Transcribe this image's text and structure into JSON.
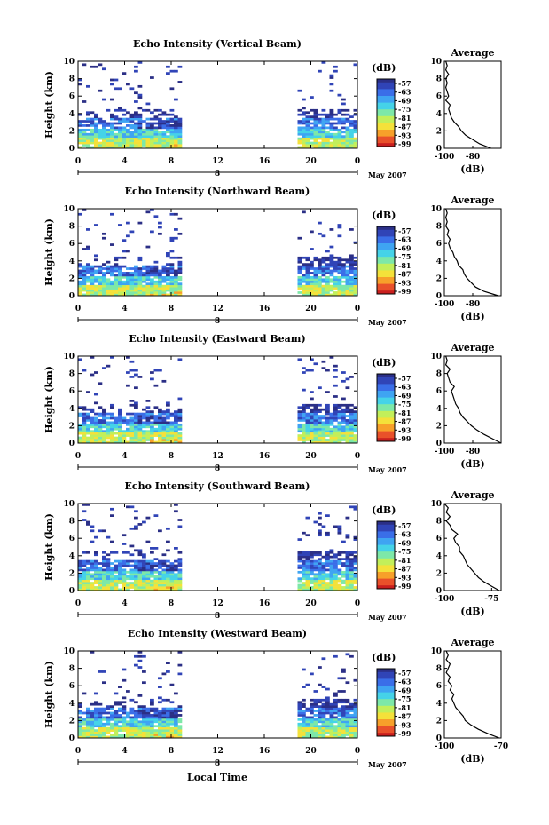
{
  "figure": {
    "x_axis_label": "Local Time",
    "date_label": "May 2007",
    "day_marker": "8"
  },
  "colors": {
    "colormap": [
      "#2b2f86",
      "#3044b7",
      "#3a6ee8",
      "#3fa4f2",
      "#45d3e8",
      "#7de8a8",
      "#c2ef5a",
      "#f4e13a",
      "#f7a02a",
      "#e9512a",
      "#c91f1f"
    ]
  },
  "chart_data": [
    {
      "type": "heatmap",
      "title": "Echo Intensity (Vertical Beam)",
      "ylabel": "Height (km)",
      "ylim": [
        0,
        10
      ],
      "yticks": [
        "0",
        "2",
        "4",
        "6",
        "8",
        "10"
      ],
      "xlim": [
        0,
        24
      ],
      "xticks": [
        "0",
        "4",
        "8",
        "12",
        "16",
        "20",
        "0"
      ],
      "data_coverage_hours": [
        [
          0,
          8.8
        ],
        [
          18.6,
          24
        ]
      ],
      "colorbar": {
        "unit": "(dB)",
        "ticks": [
          "-57",
          "-63",
          "-69",
          "-75",
          "-81",
          "-87",
          "-93",
          "-99"
        ]
      },
      "average_profile": {
        "title": "Average",
        "xlabel": "(dB)",
        "xticks": [
          "-100",
          "-80"
        ],
        "xlim": [
          -100,
          -60
        ],
        "yticks": [
          "0",
          "2",
          "4",
          "6",
          "8",
          "10"
        ],
        "ylim": [
          0,
          10
        ],
        "height_km": [
          0,
          0.5,
          1,
          1.5,
          2,
          2.5,
          3,
          3.5,
          4,
          4.5,
          5,
          5.5,
          6,
          6.5,
          7,
          7.5,
          8,
          8.5,
          9,
          9.5,
          10
        ],
        "value_db": [
          -67,
          -75,
          -80,
          -85,
          -88,
          -90,
          -93,
          -95,
          -96,
          -97,
          -96,
          -99,
          -97,
          -98,
          -99,
          -98,
          -99,
          -97,
          -99,
          -98,
          -99
        ]
      }
    },
    {
      "type": "heatmap",
      "title": "Echo Intensity (Northward Beam)",
      "ylabel": "Height (km)",
      "ylim": [
        0,
        10
      ],
      "yticks": [
        "0",
        "2",
        "4",
        "6",
        "8",
        "10"
      ],
      "xlim": [
        0,
        24
      ],
      "xticks": [
        "0",
        "4",
        "8",
        "12",
        "16",
        "20",
        "0"
      ],
      "data_coverage_hours": [
        [
          0,
          8.8
        ],
        [
          18.6,
          24
        ]
      ],
      "colorbar": {
        "unit": "(dB)",
        "ticks": [
          "-57",
          "-63",
          "-69",
          "-75",
          "-81",
          "-87",
          "-93",
          "-99"
        ]
      },
      "average_profile": {
        "title": "Average",
        "xlabel": "(dB)",
        "xticks": [
          "-100",
          "-80"
        ],
        "xlim": [
          -100,
          -60
        ],
        "yticks": [
          "0",
          "2",
          "4",
          "6",
          "8",
          "10"
        ],
        "ylim": [
          0,
          10
        ],
        "height_km": [
          0,
          0.5,
          1,
          1.5,
          2,
          2.5,
          3,
          3.5,
          4,
          4.5,
          5,
          5.5,
          6,
          6.5,
          7,
          7.5,
          8,
          8.5,
          9,
          9.5,
          10
        ],
        "value_db": [
          -62,
          -72,
          -78,
          -81,
          -84,
          -86,
          -87,
          -90,
          -91,
          -93,
          -94,
          -96,
          -97,
          -96,
          -98,
          -97,
          -99,
          -98,
          -99,
          -98,
          -99
        ]
      }
    },
    {
      "type": "heatmap",
      "title": "Echo Intensity (Eastward Beam)",
      "ylabel": "Height (km)",
      "ylim": [
        0,
        10
      ],
      "yticks": [
        "0",
        "2",
        "4",
        "6",
        "8",
        "10"
      ],
      "xlim": [
        0,
        24
      ],
      "xticks": [
        "0",
        "4",
        "8",
        "12",
        "16",
        "20",
        "0"
      ],
      "data_coverage_hours": [
        [
          0,
          8.8
        ],
        [
          18.6,
          24
        ]
      ],
      "colorbar": {
        "unit": "(dB)",
        "ticks": [
          "-57",
          "-63",
          "-69",
          "-75",
          "-81",
          "-87",
          "-93",
          "-99"
        ]
      },
      "average_profile": {
        "title": "Average",
        "xlabel": "(dB)",
        "xticks": [
          "-100",
          "-80"
        ],
        "xlim": [
          -100,
          -60
        ],
        "yticks": [
          "0",
          "2",
          "4",
          "6",
          "8",
          "10"
        ],
        "ylim": [
          0,
          10
        ],
        "height_km": [
          0,
          0.5,
          1,
          1.5,
          2,
          2.5,
          3,
          3.5,
          4,
          4.5,
          5,
          5.5,
          6,
          6.5,
          7,
          7.5,
          8,
          8.5,
          9,
          9.5,
          10
        ],
        "value_db": [
          -60,
          -66,
          -72,
          -77,
          -81,
          -84,
          -87,
          -89,
          -90,
          -92,
          -93,
          -94,
          -95,
          -93,
          -96,
          -97,
          -98,
          -96,
          -99,
          -98,
          -99
        ]
      }
    },
    {
      "type": "heatmap",
      "title": "Echo Intensity (Southward Beam)",
      "ylabel": "Height (km)",
      "ylim": [
        0,
        10
      ],
      "yticks": [
        "0",
        "2",
        "4",
        "6",
        "8",
        "10"
      ],
      "xlim": [
        0,
        24
      ],
      "xticks": [
        "0",
        "4",
        "8",
        "12",
        "16",
        "20",
        "0"
      ],
      "data_coverage_hours": [
        [
          0,
          8.8
        ],
        [
          18.6,
          24
        ]
      ],
      "colorbar": {
        "unit": "(dB)",
        "ticks": [
          "-57",
          "-63",
          "-69",
          "-75",
          "-81",
          "-87",
          "-93",
          "-99"
        ]
      },
      "average_profile": {
        "title": "Average",
        "xlabel": "(dB)",
        "xticks": [
          "-100",
          "-75"
        ],
        "xlim": [
          -100,
          -70
        ],
        "yticks": [
          "0",
          "2",
          "4",
          "6",
          "8",
          "10"
        ],
        "ylim": [
          0,
          10
        ],
        "height_km": [
          0,
          0.5,
          1,
          1.5,
          2,
          2.5,
          3,
          3.5,
          4,
          4.5,
          5,
          5.5,
          6,
          6.5,
          7,
          7.5,
          8,
          8.5,
          9,
          9.5,
          10
        ],
        "value_db": [
          -71,
          -75,
          -79,
          -82,
          -84,
          -86,
          -88,
          -89,
          -90,
          -92,
          -92,
          -94,
          -95,
          -93,
          -96,
          -97,
          -99,
          -97,
          -99,
          -98,
          -100
        ]
      }
    },
    {
      "type": "heatmap",
      "title": "Echo Intensity (Westward Beam)",
      "ylabel": "Height (km)",
      "ylim": [
        0,
        10
      ],
      "yticks": [
        "0",
        "2",
        "4",
        "6",
        "8",
        "10"
      ],
      "xlim": [
        0,
        24
      ],
      "xticks": [
        "0",
        "4",
        "8",
        "12",
        "16",
        "20",
        "0"
      ],
      "data_coverage_hours": [
        [
          0,
          8.8
        ],
        [
          18.6,
          24
        ]
      ],
      "colorbar": {
        "unit": "(dB)",
        "ticks": [
          "-57",
          "-63",
          "-69",
          "-75",
          "-81",
          "-87",
          "-93",
          "-99"
        ]
      },
      "average_profile": {
        "title": "Average",
        "xlabel": "(dB)",
        "xticks": [
          "-100",
          "-70"
        ],
        "xlim": [
          -100,
          -70
        ],
        "yticks": [
          "0",
          "2",
          "4",
          "6",
          "8",
          "10"
        ],
        "ylim": [
          0,
          10
        ],
        "height_km": [
          0,
          0.5,
          1,
          1.5,
          2,
          2.5,
          3,
          3.5,
          4,
          4.5,
          5,
          5.5,
          6,
          6.5,
          7,
          7.5,
          8,
          8.5,
          9,
          9.5,
          10
        ],
        "value_db": [
          -71,
          -77,
          -82,
          -86,
          -89,
          -90,
          -92,
          -94,
          -95,
          -96,
          -95,
          -97,
          -96,
          -98,
          -97,
          -99,
          -98,
          -97,
          -99,
          -98,
          -99
        ]
      }
    }
  ]
}
